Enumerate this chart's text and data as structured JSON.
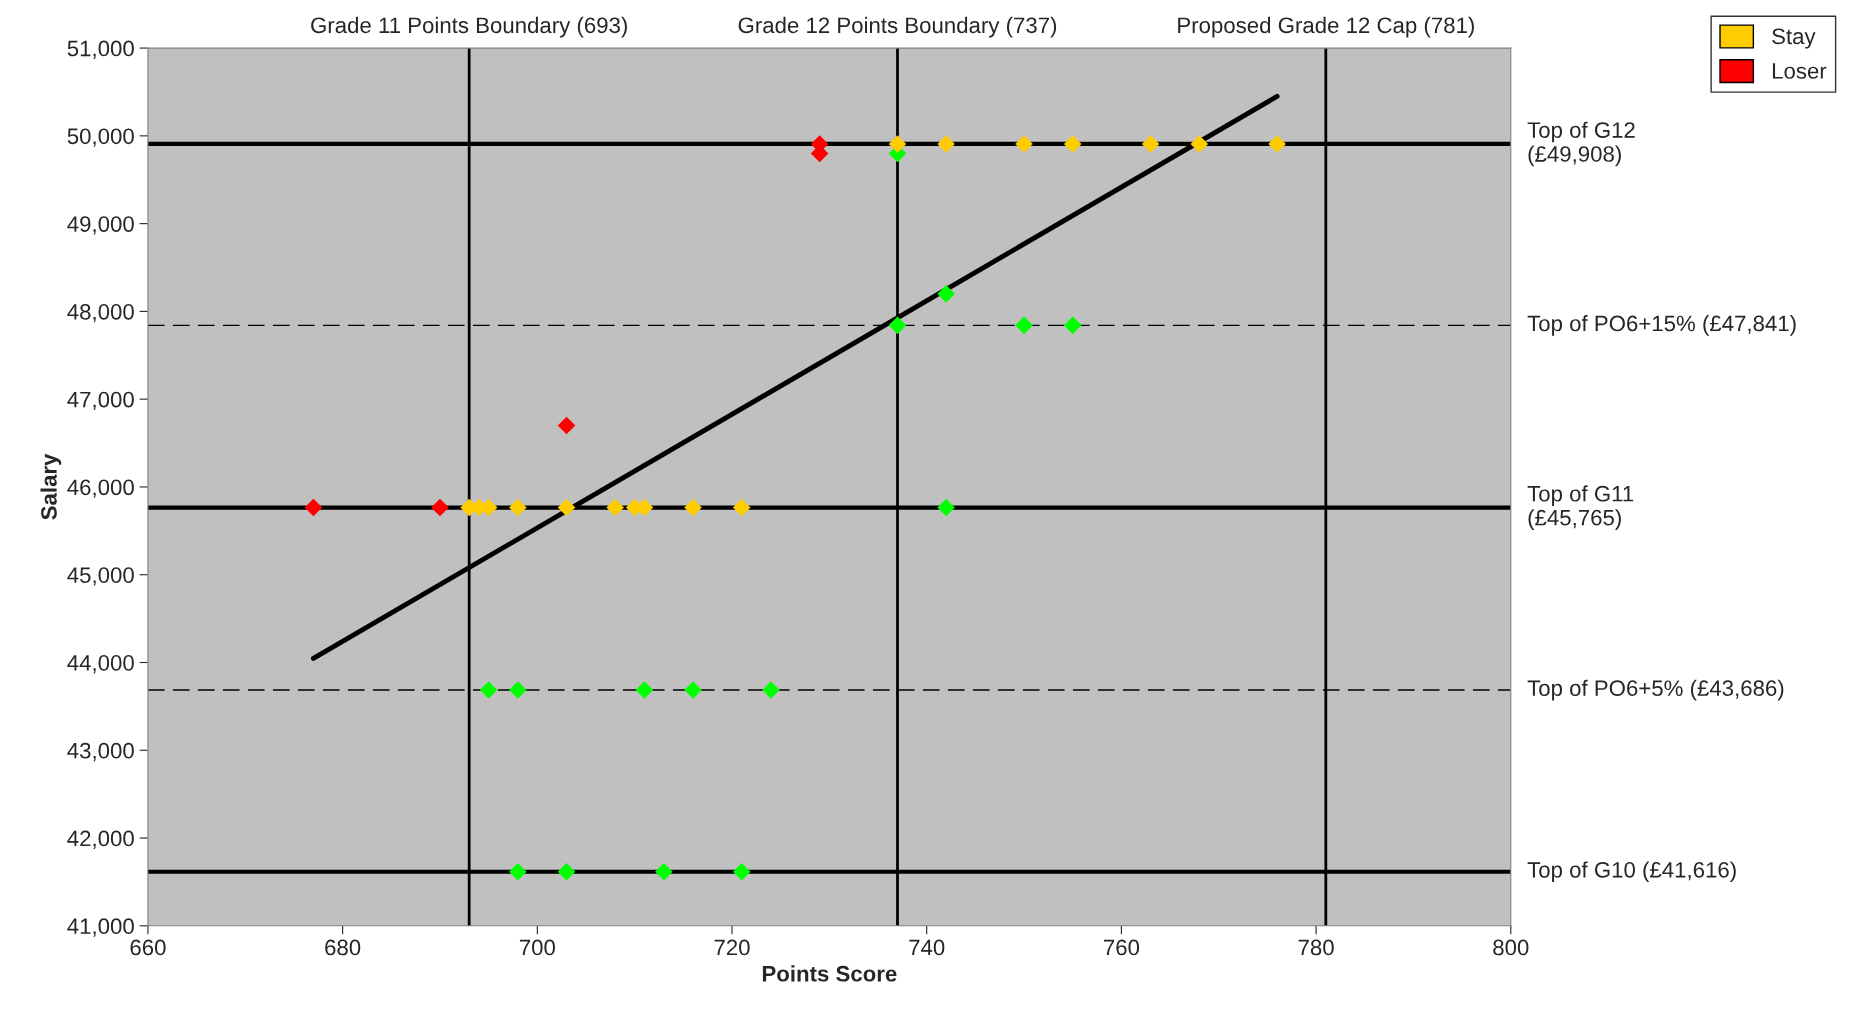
{
  "chart_data": {
    "type": "scatter",
    "xlabel": "Points Score",
    "ylabel": "Salary",
    "xlim": [
      660,
      800
    ],
    "xticks": [
      660,
      680,
      700,
      720,
      740,
      760,
      780,
      800
    ],
    "ylim": [
      41000,
      51000
    ],
    "yticks": [
      {
        "value": 41000,
        "label": "41,000"
      },
      {
        "value": 42000,
        "label": "42,000"
      },
      {
        "value": 43000,
        "label": "43,000"
      },
      {
        "value": 44000,
        "label": "44,000"
      },
      {
        "value": 45000,
        "label": "45,000"
      },
      {
        "value": 46000,
        "label": "46,000"
      },
      {
        "value": 47000,
        "label": "47,000"
      },
      {
        "value": 48000,
        "label": "48,000"
      },
      {
        "value": 49000,
        "label": "49,000"
      },
      {
        "value": 50000,
        "label": "50,000"
      },
      {
        "value": 51000,
        "label": "51,000"
      }
    ],
    "grid": false,
    "legend": "top right",
    "marker": "diamond",
    "series": [
      {
        "color": "#00ff00",
        "x": [
          737,
          742,
          737,
          750,
          755,
          742,
          695,
          698,
          711,
          716,
          724,
          698,
          703,
          713,
          721
        ],
        "values": [
          49800,
          48200,
          47841,
          47841,
          47841,
          45765,
          43686,
          43686,
          43686,
          43686,
          43686,
          41616,
          41616,
          41616,
          41616
        ]
      },
      {
        "name": "Stay",
        "color": "#ffcc00",
        "x": [
          693,
          694,
          695,
          698,
          703,
          708,
          710,
          711,
          716,
          721,
          737,
          742,
          750,
          755,
          763,
          768,
          776
        ],
        "values": [
          45765,
          45765,
          45765,
          45765,
          45765,
          45765,
          45765,
          45765,
          45765,
          45765,
          49908,
          49908,
          49908,
          49908,
          49908,
          49908,
          49908
        ]
      },
      {
        "name": "Loser",
        "color": "#ff0000",
        "x": [
          677,
          690,
          703,
          729,
          729
        ],
        "values": [
          45765,
          45765,
          46700,
          49908,
          49800
        ]
      },
      {
        "type": "line",
        "color": "#000000",
        "marker": "none",
        "x": [
          677,
          776
        ],
        "values": [
          44046,
          50450
        ]
      }
    ],
    "ref_lines": [
      {
        "axis": "y",
        "value": 49908,
        "label": "Top of G12\n(£49,908)",
        "color": "#000000",
        "line_style": "solid"
      },
      {
        "axis": "y",
        "value": 47841,
        "label": "Top of PO6+15% (£47,841)",
        "color": "#000000",
        "line_style": "dashed"
      },
      {
        "axis": "y",
        "value": 45765,
        "label": "Top of G11\n(£45,765)",
        "color": "#000000",
        "line_style": "solid"
      },
      {
        "axis": "y",
        "value": 43686,
        "label": "Top of PO6+5% (£43,686)",
        "color": "#000000",
        "line_style": "dashed"
      },
      {
        "axis": "y",
        "value": 41616,
        "label": "Top of G10 (£41,616)",
        "color": "#000000",
        "line_style": "solid"
      },
      {
        "axis": "x",
        "value": 693,
        "label": "Grade 11 Points Boundary (693)",
        "color": "#000000",
        "line_style": "solid"
      },
      {
        "axis": "x",
        "value": 737,
        "label": "Grade 12 Points Boundary (737)",
        "color": "#000000",
        "line_style": "solid"
      },
      {
        "axis": "x",
        "value": 781,
        "label": "Proposed Grade 12 Cap (781)",
        "color": "#000000",
        "line_style": "solid"
      }
    ]
  }
}
